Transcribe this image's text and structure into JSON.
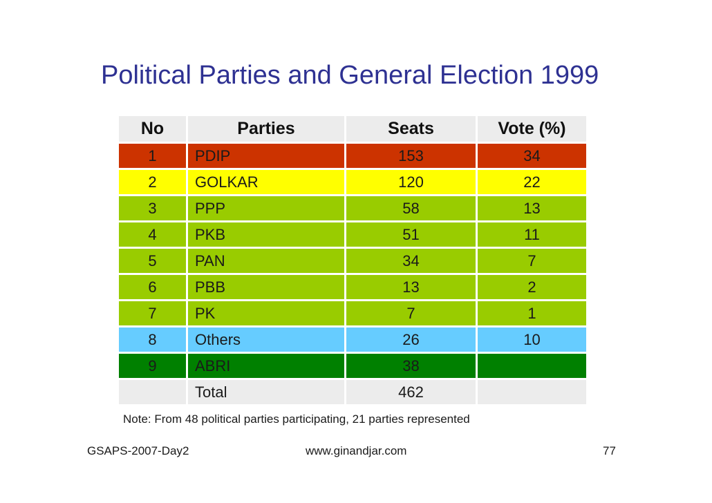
{
  "title": "Political Parties and General Election 1999",
  "table": {
    "headers": [
      "No",
      "Parties",
      "Seats",
      "Vote (%)"
    ],
    "rows": [
      {
        "no": "1",
        "party": "PDIP",
        "seats": "153",
        "vote": "34",
        "color": "#cc3300"
      },
      {
        "no": "2",
        "party": "GOLKAR",
        "seats": "120",
        "vote": "22",
        "color": "#ffff00"
      },
      {
        "no": "3",
        "party": "PPP",
        "seats": "58",
        "vote": "13",
        "color": "#99cc00"
      },
      {
        "no": "4",
        "party": "PKB",
        "seats": "51",
        "vote": "11",
        "color": "#99cc00"
      },
      {
        "no": "5",
        "party": "PAN",
        "seats": "34",
        "vote": "7",
        "color": "#99cc00"
      },
      {
        "no": "6",
        "party": "PBB",
        "seats": "13",
        "vote": "2",
        "color": "#99cc00"
      },
      {
        "no": "7",
        "party": "PK",
        "seats": "7",
        "vote": "1",
        "color": "#99cc00"
      },
      {
        "no": "8",
        "party": "Others",
        "seats": "26",
        "vote": "10",
        "color": "#66ccff"
      },
      {
        "no": "9",
        "party": "ABRI",
        "seats": "38",
        "vote": "",
        "color": "#008000"
      }
    ],
    "total": {
      "no": "",
      "party": "Total",
      "seats": "462",
      "vote": ""
    }
  },
  "note": "Note: From 48 political parties participating, 21 parties represented",
  "footer": {
    "left": "GSAPS-2007-Day2",
    "center": "www.ginandjar.com",
    "page": "77"
  }
}
